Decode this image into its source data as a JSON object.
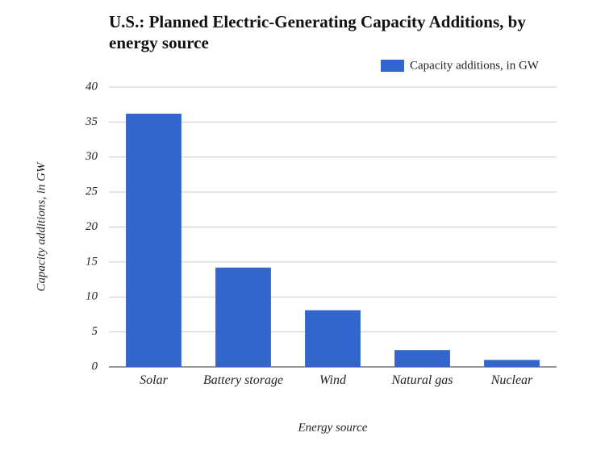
{
  "chart_data": {
    "type": "bar",
    "title": "U.S.: Planned Electric-Generating Capacity Additions, by energy source",
    "x_label": "Energy source",
    "y_label": "Capacity additions, in GW",
    "categories": [
      "Solar",
      "Battery storage",
      "Wind",
      "Natural gas",
      "Nuclear"
    ],
    "series": [
      {
        "name": "Capacity additions, in GW",
        "color": "#3366cc",
        "values": [
          36.2,
          14.2,
          8.1,
          2.4,
          1.0
        ]
      }
    ],
    "ylim": [
      0,
      40
    ],
    "yticks": [
      0,
      5,
      10,
      15,
      20,
      25,
      30,
      35,
      40
    ],
    "grid": true,
    "legend": "top-right"
  }
}
